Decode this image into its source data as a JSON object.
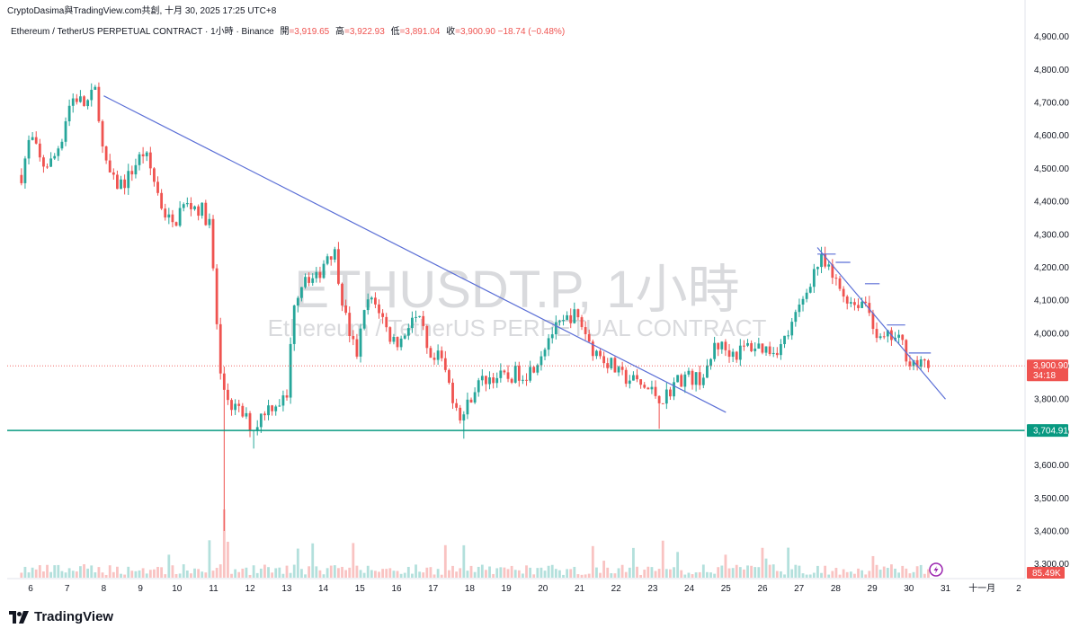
{
  "header": {
    "text": "CryptoDasima與TradingView.com共創, 十月 30, 2025 17:25 UTC+8"
  },
  "legend": {
    "symbol": "Ethereum / TetherUS PERPETUAL CONTRACT · 1小時 · Binance",
    "open_label": "開",
    "open": "=3,919.65",
    "high_label": "高",
    "high": "=3,922.93",
    "low_label": "低",
    "low": "=3,891.04",
    "close_label": "收",
    "close": "=3,900.90",
    "change": "−18.74 (−0.48%)"
  },
  "watermark": {
    "line1": "ETHUSDT.P, 1小時",
    "line2": "Ethereum / TetherUS PERPETUAL CONTRACT"
  },
  "brand": {
    "name": "TradingView"
  },
  "colors": {
    "up": "#26a69a",
    "down": "#ef5350",
    "trendline": "#5b6fd6",
    "support": "#089981"
  },
  "chart_data": {
    "type": "candlestick",
    "y_ticks": [
      "4,900.00",
      "4,800.00",
      "4,700.00",
      "4,600.00",
      "4,500.00",
      "4,400.00",
      "4,300.00",
      "4,200.00",
      "4,100.00",
      "4,000.00",
      "3,900.00",
      "3,800.00",
      "3,700.00",
      "3,600.00",
      "3,500.00",
      "3,400.00",
      "3,300.00"
    ],
    "ylim": [
      3280,
      4940
    ],
    "x_ticks": [
      {
        "label": "6",
        "day": 6
      },
      {
        "label": "7",
        "day": 7
      },
      {
        "label": "8",
        "day": 8
      },
      {
        "label": "9",
        "day": 9
      },
      {
        "label": "10",
        "day": 10
      },
      {
        "label": "11",
        "day": 11
      },
      {
        "label": "12",
        "day": 12
      },
      {
        "label": "13",
        "day": 13
      },
      {
        "label": "14",
        "day": 14
      },
      {
        "label": "15",
        "day": 15
      },
      {
        "label": "16",
        "day": 16
      },
      {
        "label": "17",
        "day": 17
      },
      {
        "label": "18",
        "day": 18
      },
      {
        "label": "19",
        "day": 19
      },
      {
        "label": "20",
        "day": 20
      },
      {
        "label": "21",
        "day": 21
      },
      {
        "label": "22",
        "day": 22
      },
      {
        "label": "23",
        "day": 23
      },
      {
        "label": "24",
        "day": 24
      },
      {
        "label": "25",
        "day": 25
      },
      {
        "label": "26",
        "day": 26
      },
      {
        "label": "27",
        "day": 27
      },
      {
        "label": "28",
        "day": 28
      },
      {
        "label": "29",
        "day": 29
      },
      {
        "label": "30",
        "day": 30
      },
      {
        "label": "31",
        "day": 31
      },
      {
        "label": "十一月",
        "day": 32
      },
      {
        "label": "2",
        "day": 33
      }
    ],
    "price_path": [
      [
        5.75,
        4480
      ],
      [
        6.0,
        4600
      ],
      [
        6.3,
        4510
      ],
      [
        6.6,
        4520
      ],
      [
        6.9,
        4610
      ],
      [
        7.0,
        4680
      ],
      [
        7.2,
        4720
      ],
      [
        7.5,
        4690
      ],
      [
        7.8,
        4740
      ],
      [
        8.0,
        4520
      ],
      [
        8.3,
        4450
      ],
      [
        8.6,
        4460
      ],
      [
        8.9,
        4520
      ],
      [
        9.1,
        4550
      ],
      [
        9.3,
        4490
      ],
      [
        9.6,
        4380
      ],
      [
        9.9,
        4320
      ],
      [
        10.1,
        4380
      ],
      [
        10.4,
        4390
      ],
      [
        10.7,
        4370
      ],
      [
        10.9,
        4330
      ],
      [
        11.2,
        3850
      ],
      [
        11.5,
        3780
      ],
      [
        11.8,
        3750
      ],
      [
        12.1,
        3710
      ],
      [
        12.4,
        3770
      ],
      [
        12.7,
        3790
      ],
      [
        13.0,
        3800
      ],
      [
        13.2,
        4100
      ],
      [
        13.5,
        4180
      ],
      [
        13.8,
        4160
      ],
      [
        14.1,
        4240
      ],
      [
        14.3,
        4250
      ],
      [
        14.6,
        4050
      ],
      [
        14.9,
        3930
      ],
      [
        15.2,
        4100
      ],
      [
        15.5,
        4080
      ],
      [
        15.8,
        3990
      ],
      [
        16.1,
        3970
      ],
      [
        16.4,
        4050
      ],
      [
        16.7,
        4020
      ],
      [
        16.9,
        3900
      ],
      [
        17.2,
        3930
      ],
      [
        17.5,
        3820
      ],
      [
        17.8,
        3740
      ],
      [
        18.1,
        3830
      ],
      [
        18.4,
        3860
      ],
      [
        18.7,
        3870
      ],
      [
        19.0,
        3860
      ],
      [
        19.3,
        3880
      ],
      [
        19.6,
        3880
      ],
      [
        19.9,
        3930
      ],
      [
        20.2,
        4000
      ],
      [
        20.5,
        4020
      ],
      [
        20.8,
        4060
      ],
      [
        21.1,
        4020
      ],
      [
        21.3,
        3960
      ],
      [
        21.6,
        3930
      ],
      [
        21.9,
        3900
      ],
      [
        22.1,
        3870
      ],
      [
        22.4,
        3860
      ],
      [
        22.7,
        3840
      ],
      [
        23.0,
        3820
      ],
      [
        23.3,
        3800
      ],
      [
        23.6,
        3850
      ],
      [
        23.9,
        3870
      ],
      [
        24.2,
        3860
      ],
      [
        24.5,
        3880
      ],
      [
        24.7,
        3970
      ],
      [
        25.0,
        3950
      ],
      [
        25.3,
        3940
      ],
      [
        25.6,
        3960
      ],
      [
        25.9,
        3960
      ],
      [
        26.2,
        3950
      ],
      [
        26.5,
        3960
      ],
      [
        26.8,
        4020
      ],
      [
        27.1,
        4100
      ],
      [
        27.4,
        4190
      ],
      [
        27.6,
        4220
      ],
      [
        27.9,
        4170
      ],
      [
        28.2,
        4120
      ],
      [
        28.5,
        4090
      ],
      [
        28.8,
        4100
      ],
      [
        29.0,
        4040
      ],
      [
        29.2,
        3970
      ],
      [
        29.5,
        3990
      ],
      [
        29.8,
        3970
      ],
      [
        30.0,
        3920
      ],
      [
        30.3,
        3900
      ],
      [
        30.6,
        3900
      ]
    ],
    "trendlines": [
      {
        "x1": 8.0,
        "y1": 4720,
        "x2": 25.0,
        "y2": 3760
      },
      {
        "x1": 27.5,
        "y1": 4260,
        "x2": 31.0,
        "y2": 3800
      }
    ],
    "resistance_marks": [
      {
        "x1": 27.5,
        "x2": 28.0,
        "y": 4240
      },
      {
        "x1": 28.0,
        "x2": 28.4,
        "y": 4215
      },
      {
        "x1": 28.8,
        "x2": 29.2,
        "y": 4150
      },
      {
        "x1": 29.4,
        "x2": 29.9,
        "y": 4025
      },
      {
        "x1": 30.0,
        "x2": 30.6,
        "y": 3940
      }
    ],
    "support": {
      "y": 3704.91,
      "label": "3,704.91"
    },
    "last_price": {
      "y": 3900.9,
      "label": "3,900.90",
      "countdown": "34:18"
    },
    "volume": {
      "label": "85.49K"
    }
  }
}
